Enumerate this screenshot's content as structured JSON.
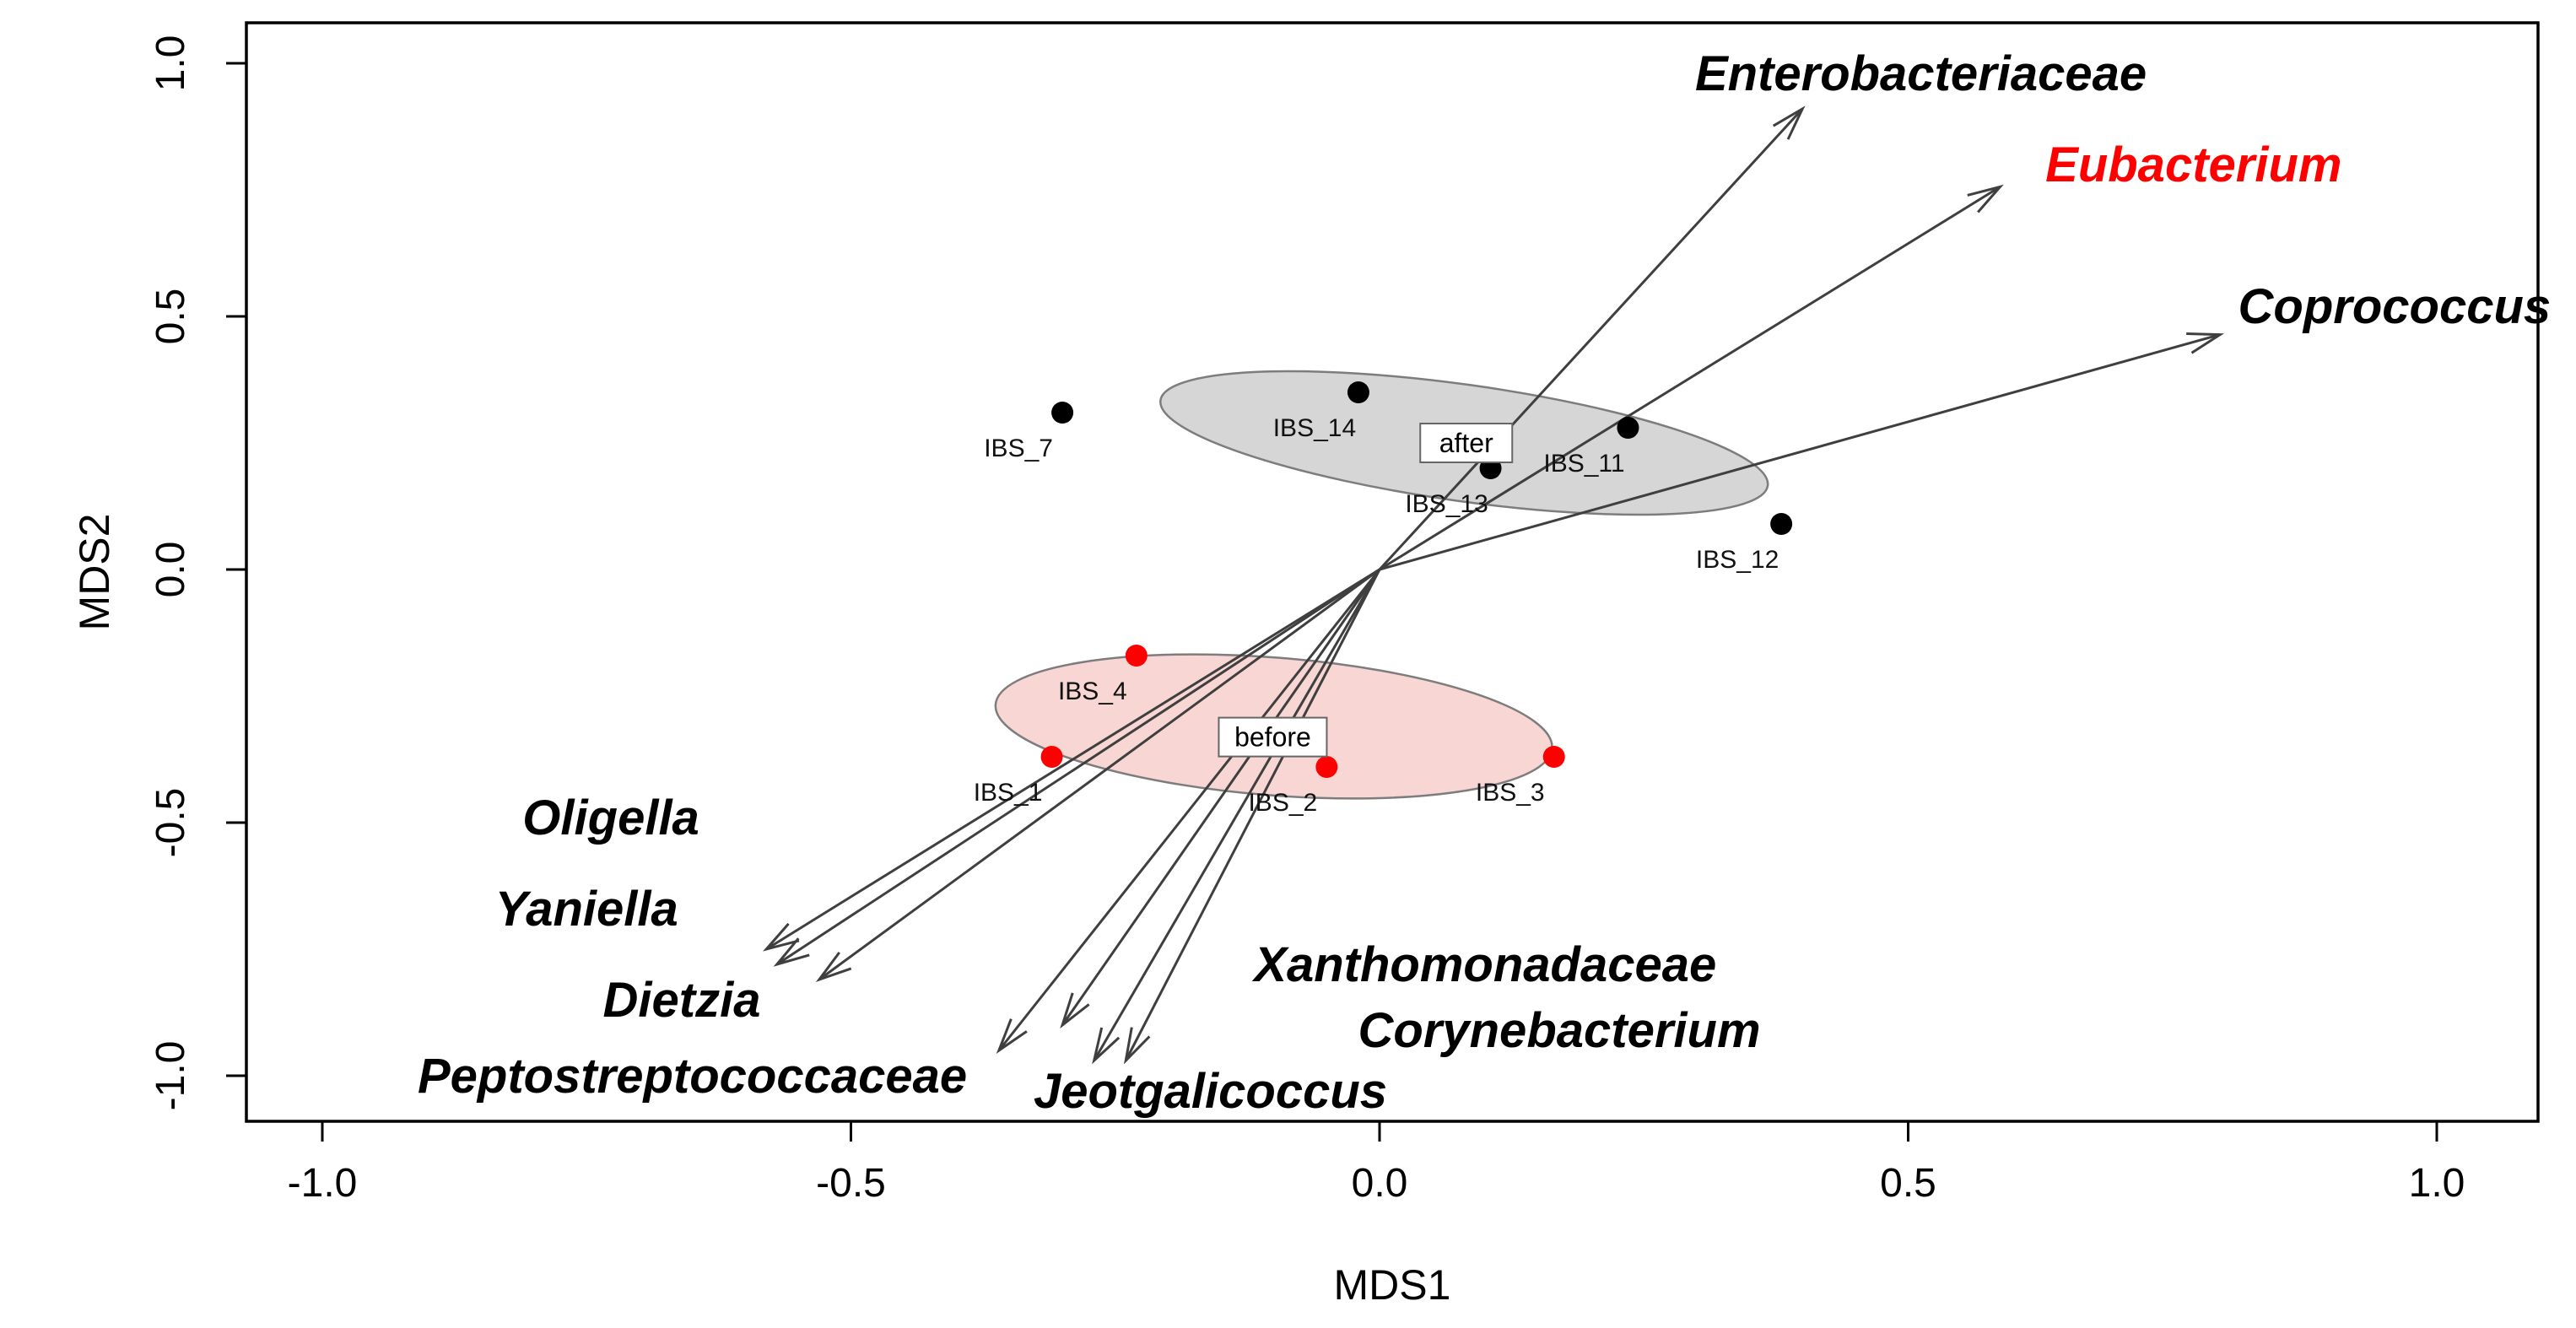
{
  "chart_data": {
    "type": "scatter",
    "subtype": "nmds-ordination-biplot",
    "title": "",
    "xlabel": "MDS1",
    "ylabel": "MDS2",
    "xlim": [
      -1.07,
      1.1
    ],
    "ylim": [
      -1.08,
      1.04
    ],
    "grid": false,
    "legend": "none",
    "xticks": {
      "labels": [
        "-1.0",
        "-0.5",
        "0.0",
        "0.5",
        "1.0"
      ],
      "values": [
        -1.0,
        -0.5,
        0.0,
        0.5,
        1.0
      ]
    },
    "yticks": {
      "labels": [
        "-1.0",
        "-0.5",
        "0.0",
        "0.5",
        "1.0"
      ],
      "values": [
        -1.0,
        -0.5,
        0.0,
        0.5,
        1.0
      ]
    },
    "colors": {
      "after_points": "#000000",
      "before_points": "#ff0000",
      "after_ellipse_fill": "#d6d6d6",
      "before_ellipse_fill": "#f8d6d4",
      "ellipse_stroke": "#7d7d7d",
      "arrow": "#3f3f3f",
      "highlight_label": "#ff0000",
      "text": "#000000"
    },
    "arrow_origin": {
      "x": 0.0,
      "y": 0.0
    },
    "groups": [
      {
        "name": "after",
        "label": "after",
        "point_color": "#000000",
        "label_pos": {
          "x": 0.082,
          "y": 0.25
        },
        "ellipse": {
          "cx": 0.08,
          "cy": 0.25,
          "rx": 0.29,
          "ry": 0.115,
          "tilt_deg": 8,
          "fill": "#d6d6d6"
        }
      },
      {
        "name": "before",
        "label": "before",
        "point_color": "#ff0000",
        "label_pos": {
          "x": -0.101,
          "y": -0.331
        },
        "ellipse": {
          "cx": -0.1,
          "cy": -0.31,
          "rx": 0.264,
          "ry": 0.136,
          "tilt_deg": 4.5,
          "fill": "#f8d6d4"
        }
      }
    ],
    "points": [
      {
        "label": "IBS_7",
        "x": -0.3,
        "y": 0.31,
        "group": "after"
      },
      {
        "label": "IBS_14",
        "x": -0.02,
        "y": 0.35,
        "group": "after"
      },
      {
        "label": "IBS_13",
        "x": 0.105,
        "y": 0.2,
        "group": "after"
      },
      {
        "label": "IBS_11",
        "x": 0.235,
        "y": 0.28,
        "group": "after"
      },
      {
        "label": "IBS_12",
        "x": 0.38,
        "y": 0.09,
        "group": "after"
      },
      {
        "label": "IBS_4",
        "x": -0.23,
        "y": -0.17,
        "group": "before"
      },
      {
        "label": "IBS_1",
        "x": -0.31,
        "y": -0.37,
        "group": "before"
      },
      {
        "label": "IBS_2",
        "x": -0.05,
        "y": -0.39,
        "group": "before"
      },
      {
        "label": "IBS_3",
        "x": 0.165,
        "y": -0.37,
        "group": "before"
      }
    ],
    "arrows": [
      {
        "label": "Enterobacteriaceae",
        "x": 0.4,
        "y": 0.91,
        "label_x": 0.512,
        "label_y": 0.98,
        "label_color": "#000000"
      },
      {
        "label": "Eubacterium",
        "x": 0.587,
        "y": 0.756,
        "label_x": 0.77,
        "label_y": 0.8,
        "label_color": "#ff0000"
      },
      {
        "label": "Coprococcus",
        "x": 0.795,
        "y": 0.464,
        "label_x": 0.96,
        "label_y": 0.52,
        "label_color": "#000000"
      },
      {
        "label": "Oligella",
        "x": -0.58,
        "y": -0.75,
        "label_x": -0.727,
        "label_y": -0.49,
        "label_color": "#000000"
      },
      {
        "label": "Yaniella",
        "x": -0.57,
        "y": -0.78,
        "label_x": -0.75,
        "label_y": -0.67,
        "label_color": "#000000"
      },
      {
        "label": "Dietzia",
        "x": -0.53,
        "y": -0.81,
        "label_x": -0.66,
        "label_y": -0.85,
        "label_color": "#000000"
      },
      {
        "label": "Peptostreptococcaceae",
        "x": -0.36,
        "y": -0.95,
        "label_x": -0.65,
        "label_y": -1.0,
        "label_color": "#000000"
      },
      {
        "label": "Xanthomonadaceae",
        "x": -0.3,
        "y": -0.9,
        "label_x": 0.1,
        "label_y": -0.78,
        "label_color": "#000000"
      },
      {
        "label": "Jeotgalicoccus",
        "x": -0.27,
        "y": -0.97,
        "label_x": -0.16,
        "label_y": -1.03,
        "label_color": "#000000"
      },
      {
        "label": "Corynebacterium",
        "x": -0.24,
        "y": -0.97,
        "label_x": 0.17,
        "label_y": -0.91,
        "label_color": "#000000"
      }
    ]
  }
}
